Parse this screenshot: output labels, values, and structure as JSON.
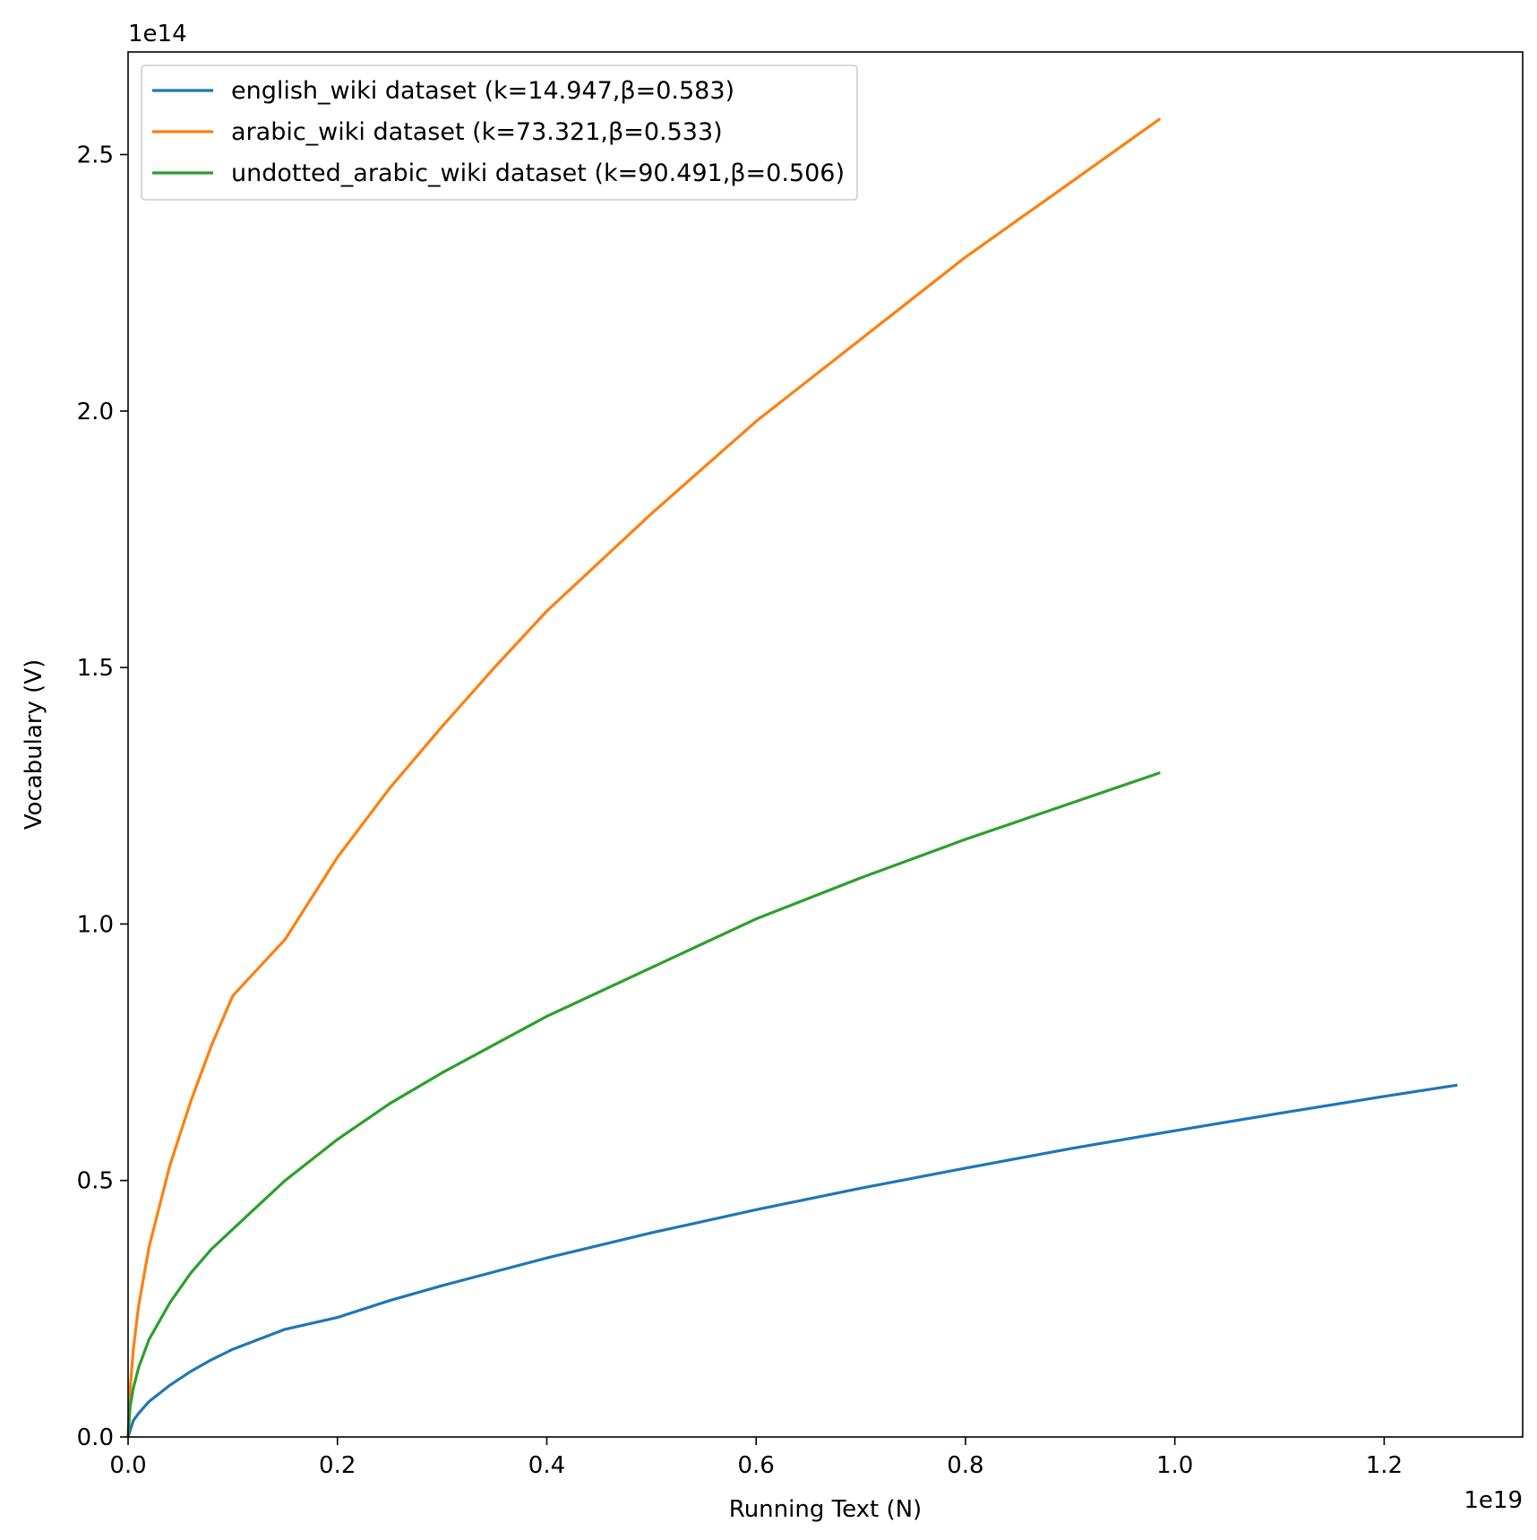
{
  "chart_data": {
    "type": "line",
    "xlabel": "Running Text (N)",
    "ylabel": "Vocabulary (V)",
    "x_offset_label": "1e19",
    "y_offset_label": "1e14",
    "xlim": [
      0,
      1.3323
    ],
    "ylim": [
      0,
      2.7
    ],
    "x_ticks": [
      0.0,
      0.2,
      0.4,
      0.6,
      0.8,
      1.0,
      1.2
    ],
    "x_tick_labels": [
      "0.0",
      "0.2",
      "0.4",
      "0.6",
      "0.8",
      "1.0",
      "1.2"
    ],
    "y_ticks": [
      0.0,
      0.5,
      1.0,
      1.5,
      2.0,
      2.5
    ],
    "y_tick_labels": [
      "0.0",
      "0.5",
      "1.0",
      "1.5",
      "2.0",
      "2.5"
    ],
    "grid": false,
    "legend_position": "top-left",
    "series": [
      {
        "name": "english_wiki dataset (k=14.947,β=0.583)",
        "color": "#1f77b4",
        "x": [
          0,
          0.005,
          0.01,
          0.02,
          0.04,
          0.06,
          0.08,
          0.1,
          0.15,
          0.2,
          0.25,
          0.3,
          0.35,
          0.4,
          0.5,
          0.6,
          0.7,
          0.8,
          0.9,
          1.0,
          1.1,
          1.2,
          1.27
        ],
        "y": [
          0,
          0.032,
          0.046,
          0.069,
          0.101,
          0.128,
          0.151,
          0.171,
          0.21,
          0.233,
          0.266,
          0.295,
          0.322,
          0.349,
          0.398,
          0.443,
          0.485,
          0.524,
          0.562,
          0.597,
          0.631,
          0.664,
          0.686
        ]
      },
      {
        "name": "arabic_wiki dataset (k=73.321,β=0.533)",
        "color": "#ff7f0e",
        "x": [
          0,
          0.002,
          0.005,
          0.01,
          0.02,
          0.04,
          0.06,
          0.08,
          0.1,
          0.15,
          0.2,
          0.25,
          0.3,
          0.35,
          0.4,
          0.5,
          0.6,
          0.7,
          0.8,
          0.9,
          0.986
        ],
        "y": [
          0,
          0.095,
          0.17,
          0.255,
          0.37,
          0.53,
          0.655,
          0.765,
          0.86,
          0.97,
          1.13,
          1.265,
          1.385,
          1.5,
          1.61,
          1.8,
          1.98,
          2.14,
          2.3,
          2.445,
          2.57
        ]
      },
      {
        "name": "undotted_arabic_wiki dataset (k=90.491,β=0.506)",
        "color": "#2ca02c",
        "x": [
          0,
          0.002,
          0.005,
          0.01,
          0.02,
          0.04,
          0.06,
          0.08,
          0.1,
          0.15,
          0.2,
          0.25,
          0.3,
          0.35,
          0.4,
          0.5,
          0.6,
          0.7,
          0.8,
          0.9,
          0.986
        ],
        "y": [
          0,
          0.06,
          0.095,
          0.135,
          0.19,
          0.262,
          0.32,
          0.367,
          0.405,
          0.5,
          0.58,
          0.65,
          0.71,
          0.765,
          0.82,
          0.915,
          1.01,
          1.09,
          1.165,
          1.235,
          1.295
        ]
      }
    ]
  }
}
